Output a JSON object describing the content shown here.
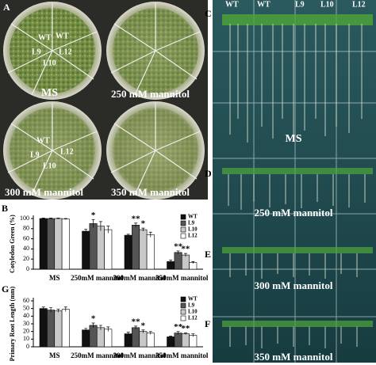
{
  "figure": {
    "panel_a": {
      "letter": "A",
      "dish_labels": [
        {
          "title": "MS",
          "lines": [
            "WT",
            "WT",
            "L9",
            "L12",
            "L10"
          ]
        },
        {
          "title": "250 mM mannitol",
          "lines": []
        },
        {
          "title": "300 mM mannitol",
          "lines": [
            "WT",
            "L9",
            "L12",
            "L10"
          ]
        },
        {
          "title": "350 mM mannitol",
          "lines": []
        }
      ]
    },
    "panel_right": {
      "letters": [
        "C",
        "D",
        "E",
        "F"
      ],
      "lines": [
        "WT",
        "WT",
        "L9",
        "L10",
        "L12"
      ],
      "conditions": [
        "MS",
        "250 mM mannitol",
        "300 mM mannitol",
        "350 mM mannitol"
      ]
    },
    "chart_letters": [
      "B",
      "G"
    ]
  },
  "chart_data": [
    {
      "type": "bar",
      "y_label": "Cotyledon  Green (%)",
      "categories": [
        "MS",
        "250mM mannitol",
        "300mM mannitol",
        "350mM mannitol"
      ],
      "ylim": [
        0,
        100
      ],
      "yticks": [
        0,
        20,
        40,
        60,
        80,
        100
      ],
      "legend": "upper right",
      "series": [
        {
          "name": "WT",
          "color": "#111111",
          "values": [
            100,
            75,
            67,
            15
          ],
          "errors": [
            1,
            4,
            2,
            3
          ]
        },
        {
          "name": "L9",
          "color": "#555555",
          "values": [
            100,
            90,
            87,
            33
          ],
          "errors": [
            1,
            8,
            4,
            3
          ]
        },
        {
          "name": "L10",
          "color": "#c8c8c8",
          "values": [
            100,
            85,
            78,
            28
          ],
          "errors": [
            1,
            9,
            3,
            3
          ]
        },
        {
          "name": "L12",
          "color": "#ffffff",
          "values": [
            99,
            78,
            68,
            13
          ],
          "errors": [
            1,
            7,
            5,
            2
          ]
        }
      ],
      "annotations": [
        {
          "text": "*",
          "category": 1,
          "series": 1
        },
        {
          "text": "**",
          "category": 2,
          "series": 1
        },
        {
          "text": "*",
          "category": 2,
          "series": 2
        },
        {
          "text": "**",
          "category": 3,
          "series": 1
        },
        {
          "text": "**",
          "category": 3,
          "series": 2
        }
      ]
    },
    {
      "type": "bar",
      "y_label": "Primary Root Length (mm)",
      "categories": [
        "MS",
        "250mM mannitol",
        "300mM mannitol",
        "350mM mannitol"
      ],
      "ylim": [
        0,
        60
      ],
      "yticks": [
        0,
        10,
        20,
        30,
        40,
        50,
        60
      ],
      "legend": "upper right",
      "series": [
        {
          "name": "WT",
          "color": "#111111",
          "values": [
            50,
            22,
            17,
            13
          ],
          "errors": [
            2,
            2,
            2,
            1
          ]
        },
        {
          "name": "L9",
          "color": "#555555",
          "values": [
            48,
            28,
            25,
            18
          ],
          "errors": [
            3,
            3,
            2,
            2
          ]
        },
        {
          "name": "L10",
          "color": "#c8c8c8",
          "values": [
            47,
            25,
            20,
            17
          ],
          "errors": [
            2,
            3,
            2,
            1
          ]
        },
        {
          "name": "L12",
          "color": "#ffffff",
          "values": [
            49,
            23,
            18,
            15
          ],
          "errors": [
            3,
            3,
            2,
            2
          ]
        }
      ],
      "annotations": [
        {
          "text": "*",
          "category": 1,
          "series": 1
        },
        {
          "text": "**",
          "category": 2,
          "series": 1
        },
        {
          "text": "*",
          "category": 2,
          "series": 2
        },
        {
          "text": "**",
          "category": 3,
          "series": 1
        },
        {
          "text": "**",
          "category": 3,
          "series": 2
        }
      ]
    }
  ]
}
